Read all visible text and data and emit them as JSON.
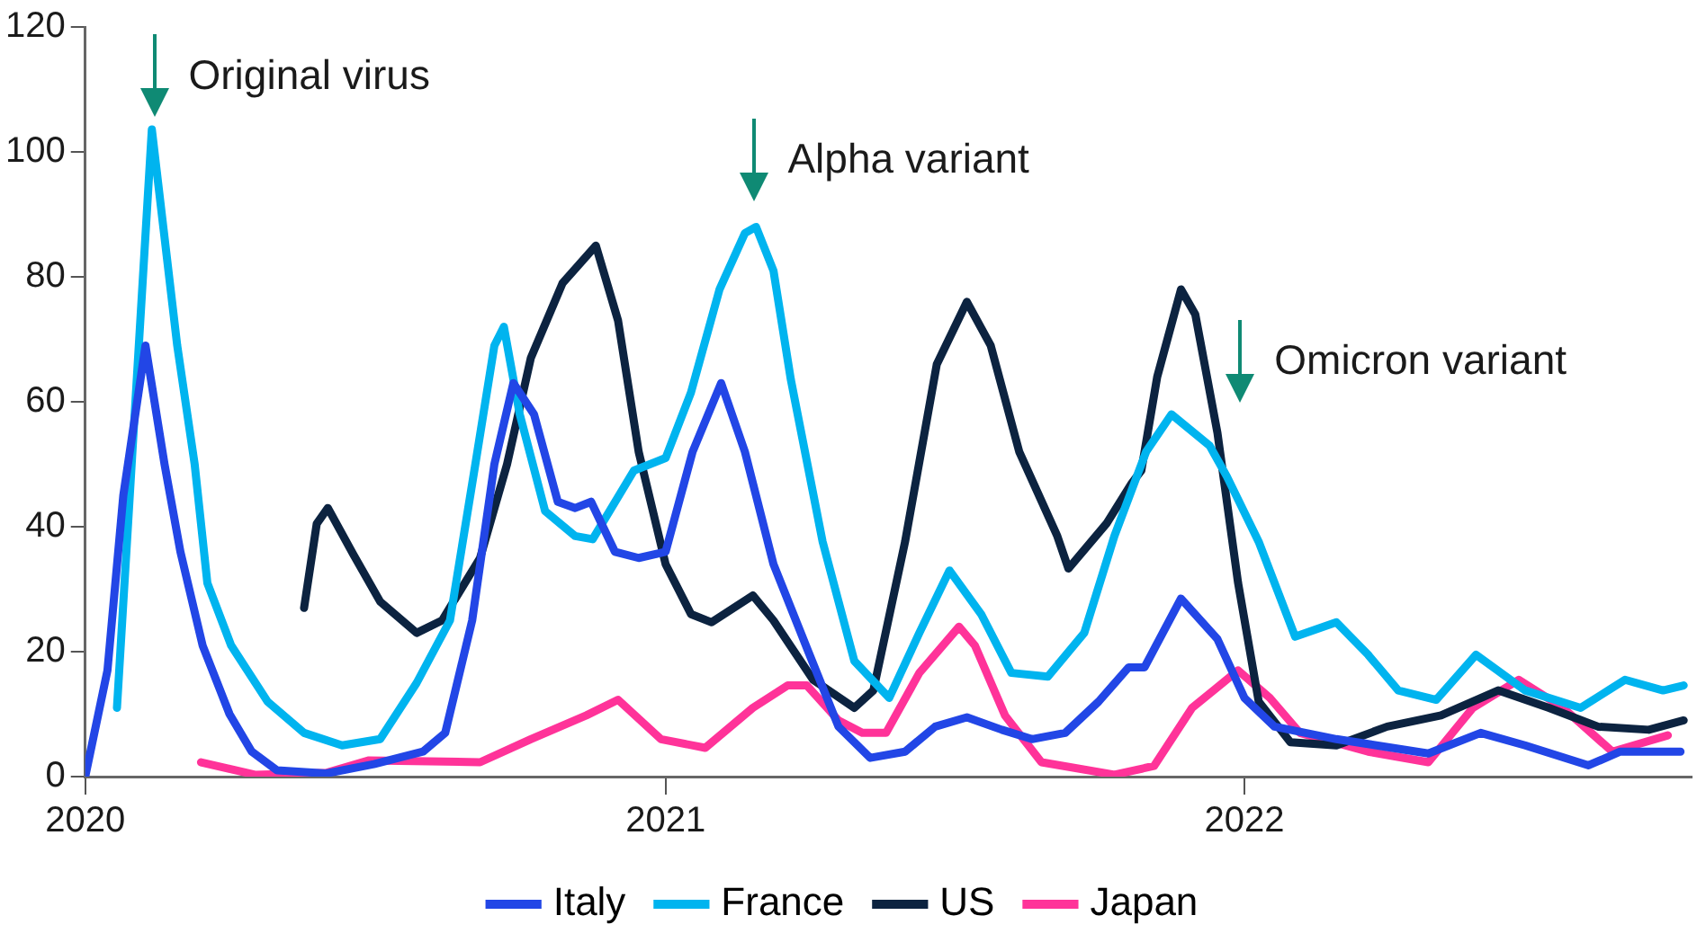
{
  "chart_data": {
    "type": "line",
    "xlim": [
      "2020-01-01",
      "2022-10-10"
    ],
    "xticks": [
      "2020",
      "2021",
      "2022"
    ],
    "ylim": [
      0,
      120
    ],
    "yticks": [
      0,
      20,
      40,
      60,
      80,
      100,
      120
    ],
    "grid": false,
    "legend": "bottom",
    "marker": "none",
    "line_style": "solid",
    "annotations": [
      "Original virus",
      "Alpha variant",
      "Omicron variant"
    ],
    "series": [
      {
        "name": "Italy",
        "color": "#2246e6",
        "x": [
          "2020-01-01",
          "2020-01-15",
          "2020-01-25",
          "2020-02-08",
          "2020-02-20",
          "2020-03-01",
          "2020-03-15",
          "2020-04-01",
          "2020-04-15",
          "2020-05-01",
          "2020-06-01",
          "2020-07-01",
          "2020-08-01",
          "2020-08-15",
          "2020-09-01",
          "2020-09-15",
          "2020-09-27",
          "2020-10-10",
          "2020-10-25",
          "2020-11-05",
          "2020-11-15",
          "2020-11-30",
          "2020-12-15",
          "2021-01-01",
          "2021-01-18",
          "2021-02-05",
          "2021-02-20",
          "2021-03-10",
          "2021-04-01",
          "2021-04-20",
          "2021-05-10",
          "2021-06-01",
          "2021-06-20",
          "2021-07-10",
          "2021-08-01",
          "2021-08-20",
          "2021-09-10",
          "2021-10-01",
          "2021-10-20",
          "2021-10-30",
          "2021-11-22",
          "2021-12-15",
          "2022-01-01",
          "2022-01-20",
          "2022-02-28",
          "2022-04-27",
          "2022-05-30",
          "2022-06-27",
          "2022-08-06",
          "2022-08-26",
          "2022-10-03"
        ],
        "values": [
          0,
          17,
          45,
          69,
          50,
          36,
          21,
          10,
          4,
          1,
          0.5,
          2,
          4,
          7,
          25,
          50,
          63,
          58,
          44,
          43,
          44,
          36,
          35,
          36,
          52,
          63,
          52,
          34,
          20,
          8,
          3,
          4,
          8,
          9.5,
          7.5,
          6,
          7,
          12,
          17.5,
          17.5,
          28.5,
          22,
          12.6,
          8,
          6,
          3.7,
          7,
          5,
          1.8,
          4,
          4
        ]
      },
      {
        "name": "France",
        "color": "#00b4ef",
        "x": [
          "2020-01-21",
          "2020-02-12",
          "2020-02-28",
          "2020-03-10",
          "2020-03-18",
          "2020-04-02",
          "2020-04-25",
          "2020-05-18",
          "2020-06-11",
          "2020-07-05",
          "2020-07-28",
          "2020-08-18",
          "2020-09-03",
          "2020-09-15",
          "2020-09-21",
          "2020-10-01",
          "2020-10-17",
          "2020-11-05",
          "2020-11-16",
          "2020-12-12",
          "2021-01-01",
          "2021-01-17",
          "2021-02-04",
          "2021-02-20",
          "2021-02-27",
          "2021-03-10",
          "2021-03-21",
          "2021-04-10",
          "2021-04-30",
          "2021-05-22",
          "2021-06-10",
          "2021-06-29",
          "2021-07-19",
          "2021-08-07",
          "2021-08-30",
          "2021-09-22",
          "2021-10-11",
          "2021-10-31",
          "2021-11-16",
          "2021-12-10",
          "2021-12-21",
          "2022-01-10",
          "2022-02-02",
          "2022-02-28",
          "2022-03-20",
          "2022-04-08",
          "2022-05-02",
          "2022-05-27",
          "2022-06-27",
          "2022-08-01",
          "2022-08-29",
          "2022-09-22",
          "2022-10-05"
        ],
        "values": [
          11,
          103.6,
          69,
          50,
          31,
          21,
          12,
          7,
          5,
          6,
          15,
          25,
          50,
          69,
          72,
          58,
          42.5,
          38.5,
          38,
          49,
          51,
          61.5,
          78,
          87,
          88,
          81,
          63.5,
          37.6,
          18.5,
          12.6,
          23,
          33,
          26,
          16.6,
          16,
          23,
          38.5,
          52,
          58,
          53,
          48,
          37.6,
          22.4,
          24.7,
          19.5,
          13.8,
          12.3,
          19.5,
          13.8,
          11,
          15.5,
          13.8,
          14.6
        ]
      },
      {
        "name": "US",
        "color": "#0c2340",
        "x": [
          "2020-05-18",
          "2020-05-26",
          "2020-06-02",
          "2020-06-18",
          "2020-07-05",
          "2020-07-28",
          "2020-08-13",
          "2020-09-06",
          "2020-09-23",
          "2020-10-08",
          "2020-10-28",
          "2020-11-18",
          "2020-12-02",
          "2020-12-15",
          "2021-01-01",
          "2021-01-17",
          "2021-01-30",
          "2021-02-25",
          "2021-03-10",
          "2021-04-04",
          "2021-04-30",
          "2021-05-12",
          "2021-06-01",
          "2021-06-21",
          "2021-07-10",
          "2021-07-25",
          "2021-08-12",
          "2021-09-05",
          "2021-09-12",
          "2021-10-06",
          "2021-10-22",
          "2021-10-28",
          "2021-11-07",
          "2021-11-22",
          "2021-12-01",
          "2021-12-15",
          "2021-12-28",
          "2022-01-10",
          "2022-01-30",
          "2022-02-28",
          "2022-04-01",
          "2022-05-05",
          "2022-06-10",
          "2022-07-12",
          "2022-08-12",
          "2022-09-13",
          "2022-10-05"
        ],
        "values": [
          27,
          40.5,
          43,
          35.6,
          28,
          23,
          25,
          35,
          50,
          67,
          79,
          85,
          73,
          52,
          34,
          26,
          24.7,
          29,
          25,
          15.5,
          11,
          13.8,
          37.6,
          66,
          76,
          69,
          52,
          38.5,
          33.3,
          40.5,
          47,
          49,
          64,
          78,
          74,
          55,
          31,
          12,
          5.5,
          5,
          8,
          9.8,
          13.8,
          11,
          8,
          7.5,
          9
        ]
      },
      {
        "name": "Japan",
        "color": "#ff3399",
        "x": [
          "2020-03-14",
          "2020-04-17",
          "2020-06-01",
          "2020-06-28",
          "2020-09-06",
          "2020-10-08",
          "2020-11-12",
          "2020-12-02",
          "2020-12-29",
          "2021-01-26",
          "2021-02-25",
          "2021-03-19",
          "2021-03-31",
          "2021-04-20",
          "2021-05-05",
          "2021-05-20",
          "2021-06-10",
          "2021-07-05",
          "2021-07-15",
          "2021-08-03",
          "2021-08-26",
          "2021-10-11",
          "2021-11-05",
          "2021-11-29",
          "2021-12-28",
          "2022-01-17",
          "2022-02-05",
          "2022-03-20",
          "2022-04-27",
          "2022-05-25",
          "2022-06-23",
          "2022-07-21",
          "2022-08-21",
          "2022-09-25"
        ],
        "values": [
          2.3,
          0.3,
          0.6,
          2.6,
          2.3,
          6,
          9.8,
          12.3,
          6,
          4.6,
          11,
          14.6,
          14.6,
          9,
          7,
          7,
          16.6,
          24,
          21,
          9.8,
          2.3,
          0.3,
          1.7,
          11,
          17,
          12.6,
          7,
          4,
          2.3,
          11,
          15.5,
          11,
          4,
          6.6
        ]
      }
    ]
  }
}
